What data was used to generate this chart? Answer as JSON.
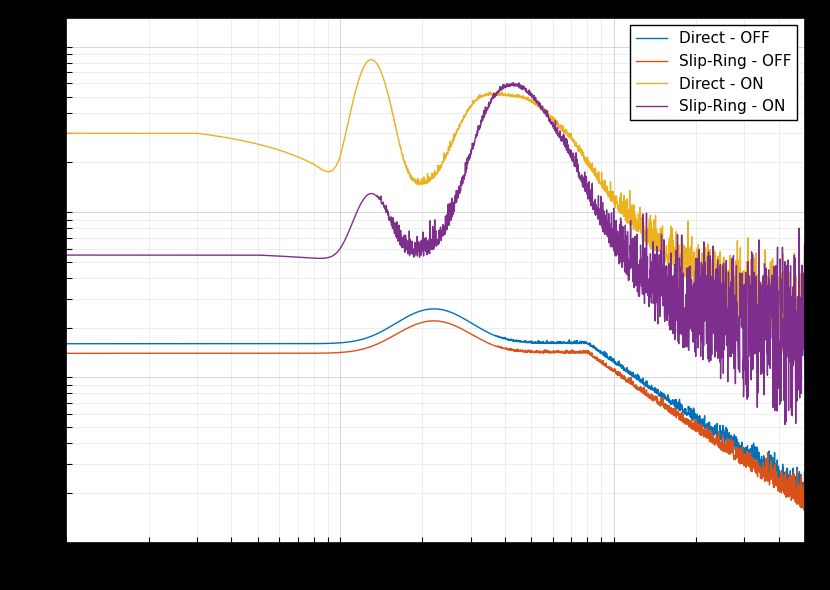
{
  "lines": [
    {
      "label": "Direct - OFF",
      "color": "#0072BD",
      "lw": 1.0
    },
    {
      "label": "Slip-Ring - OFF",
      "color": "#D95319",
      "lw": 1.0
    },
    {
      "label": "Direct - ON",
      "color": "#EDB120",
      "lw": 1.0
    },
    {
      "label": "Slip-Ring - ON",
      "color": "#7E2F8E",
      "lw": 1.0
    }
  ],
  "grid_color": "#d0d0d0",
  "bg_color": "#ffffff",
  "legend_loc": "upper right",
  "legend_fontsize": 11,
  "freq_min": 1,
  "freq_max": 500,
  "n_points": 3000,
  "xlim": [
    1,
    500
  ],
  "frame_color": "#000000",
  "tick_labelsize": 11
}
